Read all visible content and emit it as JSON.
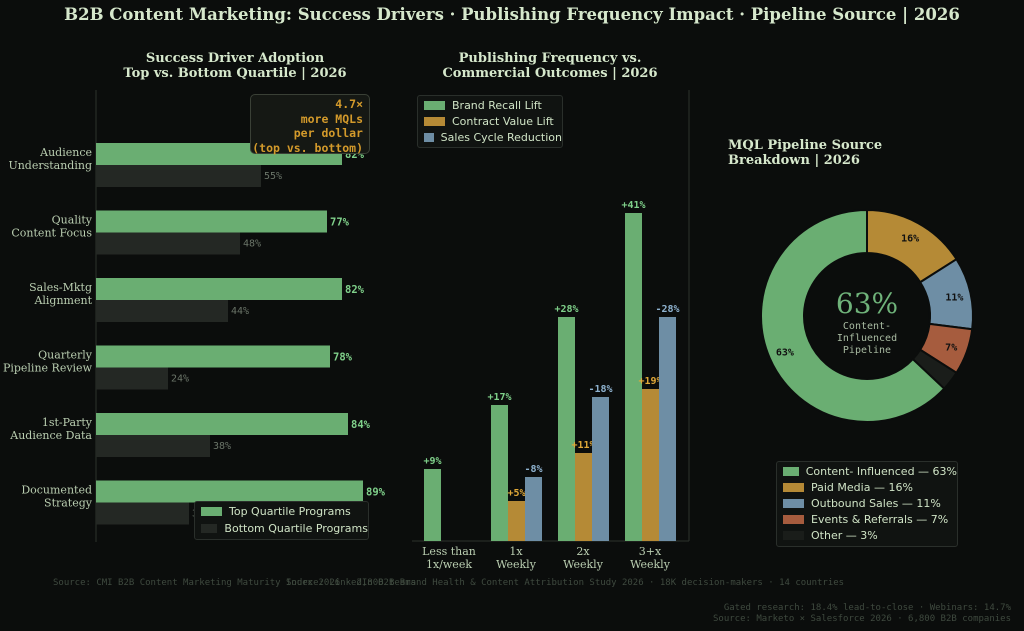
{
  "title": "B2B Content Marketing: Success Drivers · Publishing Frequency Impact · Pipeline Source  |  2026",
  "panels": {
    "left": {
      "title_line1": "Success Driver Adoption",
      "title_line2": "Top vs. Bottom Quartile  |  2026"
    },
    "middle": {
      "title_line1": "Publishing Frequency vs.",
      "title_line2": "Commercial Outcomes  |  2026"
    },
    "right": {
      "title_line1": "MQL Pipeline Source",
      "title_line2": "Breakdown  |  2026"
    }
  },
  "callout": {
    "line1": "4.7×",
    "line2": "more MQLs",
    "line3": "per dollar",
    "line4": "(top vs. bottom)"
  },
  "donut_center": {
    "value": "63%",
    "label_line1": "Content-",
    "label_line2": "Influenced",
    "label_line3": "Pipeline"
  },
  "sources": {
    "left": "Source: CMI B2B Content Marketing Maturity Index 2026 · 2,800 teams",
    "middle": "Source: LinkedIn B2B Brand Health & Content Attribution Study 2026 · 18K decision-makers · 14 countries",
    "right_line1": "Gated research: 18.4% lead-to-close · Webinars: 14.7%",
    "right_line2": "Source: Marketo × Salesforce 2026 · 6,800 B2B companies"
  },
  "colors": {
    "green": "#6aae72",
    "gold": "#b58a36",
    "blue": "#6e8ea5",
    "rust": "#a65c3e",
    "dark": "#1a1d1a",
    "bottom_bar": "#242824",
    "green_text": "#7fd08a",
    "gold_text": "#e0a838",
    "blue_text": "#8fb3d0"
  },
  "chart_data": [
    {
      "type": "bar",
      "orientation": "horizontal",
      "categories": [
        "Audience Understanding",
        "Quality Content Focus",
        "Sales-Mktg Alignment",
        "Quarterly Pipeline Review",
        "1st-Party Audience Data",
        "Documented Strategy"
      ],
      "series": [
        {
          "name": "Top Quartile Programs",
          "values": [
            82,
            77,
            82,
            78,
            84,
            89
          ],
          "labels": [
            "82%",
            "77%",
            "82%",
            "78%",
            "84%",
            "89%"
          ]
        },
        {
          "name": "Bottom Quartile Programs",
          "values": [
            55,
            48,
            44,
            24,
            38,
            31
          ],
          "labels": [
            "55%",
            "48%",
            "44%",
            "24%",
            "38%",
            "31%"
          ]
        }
      ],
      "xlim": [
        0,
        100
      ],
      "legend": "bottom-right"
    },
    {
      "type": "bar",
      "categories": [
        "Less than 1x/week",
        "1x Weekly",
        "2x Weekly",
        "3+x Weekly"
      ],
      "series": [
        {
          "name": "Brand Recall Lift",
          "values": [
            9,
            17,
            28,
            41
          ],
          "labels": [
            "+9%",
            "+17%",
            "+28%",
            "+41%"
          ]
        },
        {
          "name": "Contract Value Lift",
          "values": [
            0,
            5,
            11,
            19
          ],
          "labels": [
            "",
            "+5%",
            "+11%",
            "+19%"
          ]
        },
        {
          "name": "Sales Cycle Reduction",
          "values": [
            0,
            8,
            18,
            28
          ],
          "labels": [
            "",
            "-8%",
            "-18%",
            "-28%"
          ]
        }
      ],
      "ylim": [
        0,
        45
      ],
      "legend": "top-left"
    },
    {
      "type": "pie",
      "style": "donut",
      "labels": [
        "Content- Influenced",
        "Paid Media",
        "Outbound Sales",
        "Events & Referrals",
        "Other"
      ],
      "values": [
        63,
        16,
        11,
        7,
        3
      ],
      "slice_labels": [
        "63%",
        "16%",
        "11%",
        "7%",
        ""
      ],
      "legend_entries": [
        "Content- Influenced — 63%",
        "Paid Media — 16%",
        "Outbound Sales — 11%",
        "Events & Referrals — 7%",
        "Other — 3%"
      ],
      "legend": "bottom"
    }
  ]
}
